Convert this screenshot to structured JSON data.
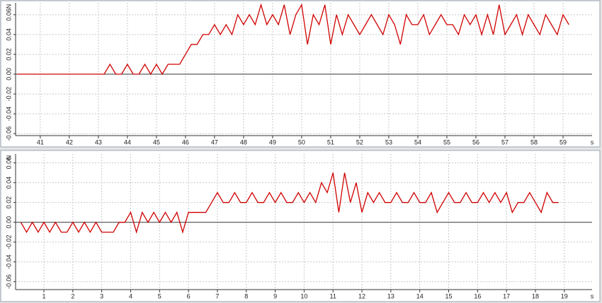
{
  "chart_data": [
    {
      "type": "line",
      "color": "#d00000",
      "x_label": "s",
      "y_label": "N",
      "x": [
        40.2,
        40.4,
        40.6,
        40.8,
        41.0,
        41.2,
        41.4,
        41.6,
        41.8,
        42.0,
        42.2,
        42.4,
        42.6,
        42.8,
        43.0,
        43.2,
        43.4,
        43.6,
        43.8,
        44.0,
        44.2,
        44.4,
        44.6,
        44.8,
        45.0,
        45.2,
        45.4,
        45.6,
        45.8,
        46.0,
        46.2,
        46.4,
        46.6,
        46.8,
        47.0,
        47.2,
        47.4,
        47.6,
        47.8,
        48.0,
        48.2,
        48.4,
        48.6,
        48.8,
        49.0,
        49.2,
        49.4,
        49.6,
        49.8,
        50.0,
        50.2,
        50.4,
        50.6,
        50.8,
        51.0,
        51.2,
        51.4,
        51.6,
        51.8,
        52.0,
        52.2,
        52.4,
        52.6,
        52.8,
        53.0,
        53.2,
        53.4,
        53.6,
        53.8,
        54.0,
        54.2,
        54.4,
        54.6,
        54.8,
        55.0,
        55.2,
        55.4,
        55.6,
        55.8,
        56.0,
        56.2,
        56.4,
        56.6,
        56.8,
        57.0,
        57.2,
        57.4,
        57.6,
        57.8,
        58.0,
        58.2,
        58.4,
        58.6,
        58.8,
        59.0,
        59.2
      ],
      "values": [
        0,
        0,
        0,
        0,
        0,
        0,
        0,
        0,
        0,
        0,
        0,
        0,
        0,
        0,
        0,
        0,
        0.01,
        0,
        0,
        0.01,
        0,
        0,
        0.01,
        0,
        0.01,
        0,
        0.01,
        0.01,
        0.01,
        0.02,
        0.03,
        0.03,
        0.04,
        0.04,
        0.05,
        0.04,
        0.05,
        0.04,
        0.06,
        0.05,
        0.06,
        0.05,
        0.07,
        0.05,
        0.06,
        0.05,
        0.07,
        0.04,
        0.06,
        0.07,
        0.03,
        0.06,
        0.05,
        0.07,
        0.03,
        0.06,
        0.04,
        0.06,
        0.05,
        0.04,
        0.05,
        0.06,
        0.05,
        0.04,
        0.06,
        0.05,
        0.03,
        0.06,
        0.05,
        0.05,
        0.06,
        0.04,
        0.05,
        0.06,
        0.05,
        0.05,
        0.04,
        0.06,
        0.05,
        0.06,
        0.04,
        0.06,
        0.04,
        0.07,
        0.04,
        0.05,
        0.06,
        0.04,
        0.06,
        0.05,
        0.04,
        0.06,
        0.05,
        0.04,
        0.06,
        0.05
      ],
      "xlim": [
        40.15,
        60.0
      ],
      "xticks": [
        41,
        42,
        43,
        44,
        45,
        46,
        47,
        48,
        49,
        50,
        51,
        52,
        53,
        54,
        55,
        56,
        57,
        58,
        59
      ],
      "ylim": [
        -0.062,
        0.072
      ],
      "yticks": [
        {
          "value": 0.06,
          "label": "0.06"
        },
        {
          "value": 0.04,
          "label": "0.04"
        },
        {
          "value": 0.02,
          "label": "0.02"
        },
        {
          "value": 0,
          "label": "0.00"
        },
        {
          "value": -0.02,
          "label": "-0.02"
        },
        {
          "value": -0.04,
          "label": "-0.04"
        },
        {
          "value": -0.06,
          "label": "-0.06"
        }
      ],
      "grid": true
    },
    {
      "type": "line",
      "color": "#d00000",
      "x_label": "s",
      "y_label": "N",
      "x": [
        0.2,
        0.4,
        0.6,
        0.8,
        1.0,
        1.2,
        1.4,
        1.6,
        1.8,
        2.0,
        2.2,
        2.4,
        2.6,
        2.8,
        3.0,
        3.2,
        3.4,
        3.6,
        3.8,
        4.0,
        4.2,
        4.4,
        4.6,
        4.8,
        5.0,
        5.2,
        5.4,
        5.6,
        5.8,
        6.0,
        6.2,
        6.4,
        6.6,
        6.8,
        7.0,
        7.2,
        7.4,
        7.6,
        7.8,
        8.0,
        8.2,
        8.4,
        8.6,
        8.8,
        9.0,
        9.2,
        9.4,
        9.6,
        9.8,
        10.0,
        10.2,
        10.4,
        10.6,
        10.8,
        11.0,
        11.2,
        11.4,
        11.6,
        11.8,
        12.0,
        12.2,
        12.4,
        12.6,
        12.8,
        13.0,
        13.2,
        13.4,
        13.6,
        13.8,
        14.0,
        14.2,
        14.4,
        14.6,
        14.8,
        15.0,
        15.2,
        15.4,
        15.6,
        15.8,
        16.0,
        16.2,
        16.4,
        16.6,
        16.8,
        17.0,
        17.2,
        17.4,
        17.6,
        17.8,
        18.0,
        18.2,
        18.4,
        18.6,
        18.8
      ],
      "values": [
        0,
        -0.01,
        0,
        -0.01,
        0,
        -0.01,
        0,
        -0.01,
        -0.01,
        0,
        -0.01,
        0,
        -0.01,
        0,
        -0.01,
        -0.01,
        -0.01,
        0,
        0,
        0.01,
        -0.01,
        0.01,
        0,
        0.01,
        0,
        0.01,
        0,
        0.01,
        -0.01,
        0.01,
        0.01,
        0.01,
        0.01,
        0.02,
        0.03,
        0.02,
        0.02,
        0.03,
        0.02,
        0.02,
        0.03,
        0.02,
        0.02,
        0.03,
        0.02,
        0.03,
        0.02,
        0.02,
        0.03,
        0.02,
        0.03,
        0.02,
        0.04,
        0.03,
        0.05,
        0.01,
        0.05,
        0.02,
        0.04,
        0.01,
        0.03,
        0.02,
        0.03,
        0.02,
        0.02,
        0.03,
        0.02,
        0.02,
        0.03,
        0.02,
        0.02,
        0.03,
        0.01,
        0.02,
        0.03,
        0.02,
        0.02,
        0.03,
        0.02,
        0.02,
        0.03,
        0.02,
        0.03,
        0.02,
        0.03,
        0.01,
        0.02,
        0.02,
        0.03,
        0.02,
        0.01,
        0.03,
        0.02,
        0.02
      ],
      "xlim": [
        0.02,
        19.96
      ],
      "xticks": [
        1,
        2,
        3,
        4,
        5,
        6,
        7,
        8,
        9,
        10,
        11,
        12,
        13,
        14,
        15,
        16,
        17,
        18,
        19
      ],
      "ylim": [
        -0.068,
        0.069
      ],
      "yticks": [
        {
          "value": 0.06,
          "label": "0.06"
        },
        {
          "value": 0.04,
          "label": "0.04"
        },
        {
          "value": 0.02,
          "label": "0.02"
        },
        {
          "value": 0,
          "label": "0.00"
        },
        {
          "value": -0.02,
          "label": "-0.02"
        },
        {
          "value": -0.04,
          "label": "-0.04"
        },
        {
          "value": -0.06,
          "label": "-0.06"
        }
      ],
      "grid": true
    }
  ]
}
